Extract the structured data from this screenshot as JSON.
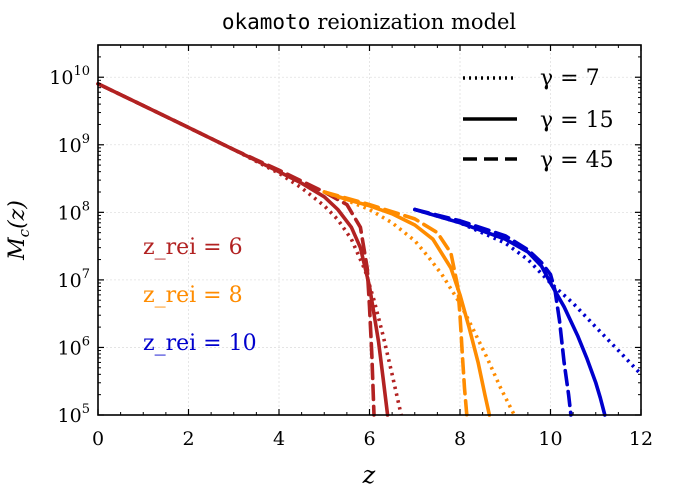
{
  "chart_data": {
    "type": "line",
    "title_prefix": "okamoto",
    "title_suffix": "reionization model",
    "xlabel": "z",
    "ylabel": "M_c(z)",
    "xlim": [
      0,
      12
    ],
    "ylim": [
      100000,
      30000000000
    ],
    "yscale": "log",
    "grid": true,
    "x_ticks": [
      "0",
      "2",
      "4",
      "6",
      "8",
      "10",
      "12"
    ],
    "y_ticks": [
      "10^5",
      "10^6",
      "10^7",
      "10^8",
      "10^9",
      "10^10"
    ],
    "legend": {
      "placement": "top-right",
      "entries": [
        {
          "label": "γ = 7",
          "linestyle": "dotted"
        },
        {
          "label": "γ = 15",
          "linestyle": "solid"
        },
        {
          "label": "γ = 45",
          "linestyle": "dashed"
        }
      ]
    },
    "annotations": [
      {
        "label": "z_rei = 6",
        "color": "#b22222"
      },
      {
        "label": "z_rei = 8",
        "color": "#ff8c00"
      },
      {
        "label": "z_rei = 10",
        "color": "#0000cd"
      }
    ],
    "series": [
      {
        "z_rei": 6,
        "gamma": 7,
        "color": "#b22222",
        "linestyle": "dotted",
        "x": [
          0,
          1,
          2,
          3,
          4,
          4.5,
          5,
          5.3,
          5.6,
          5.9,
          6.1,
          6.3,
          6.5,
          6.7
        ],
        "y": [
          8000000000,
          3800000000,
          1800000000,
          850000000,
          380000000,
          230000000,
          125000000,
          78000000,
          40000000,
          14000000,
          5000000,
          1500000,
          400000,
          100000
        ]
      },
      {
        "z_rei": 6,
        "gamma": 15,
        "color": "#b22222",
        "linestyle": "solid",
        "x": [
          0,
          1,
          2,
          3,
          4,
          4.5,
          5,
          5.3,
          5.6,
          5.8,
          6.0,
          6.2,
          6.3,
          6.4
        ],
        "y": [
          8000000000,
          3800000000,
          1800000000,
          850000000,
          400000000,
          270000000,
          170000000,
          110000000,
          60000000,
          30000000,
          8000000,
          1200000,
          350000,
          100000
        ]
      },
      {
        "z_rei": 6,
        "gamma": 45,
        "color": "#b22222",
        "linestyle": "dashed",
        "x": [
          0,
          1,
          2,
          3,
          4,
          5,
          5.5,
          5.8,
          5.95,
          6.0,
          6.05,
          6.1
        ],
        "y": [
          8000000000,
          3800000000,
          1800000000,
          850000000,
          420000000,
          200000000,
          130000000,
          60000000,
          15000000,
          4000000,
          800000,
          100000
        ]
      },
      {
        "z_rei": 8,
        "gamma": 7,
        "color": "#ff8c00",
        "linestyle": "dotted",
        "x": [
          5,
          5.5,
          6,
          6.5,
          7,
          7.3,
          7.6,
          8.0,
          8.3,
          8.6,
          8.9,
          9.2
        ],
        "y": [
          200000000,
          150000000,
          110000000,
          70000000,
          38000000,
          22000000,
          12000000,
          4500000,
          1800000,
          700000,
          250000,
          100000
        ]
      },
      {
        "z_rei": 8,
        "gamma": 15,
        "color": "#ff8c00",
        "linestyle": "solid",
        "x": [
          5,
          5.5,
          6,
          6.5,
          7,
          7.4,
          7.8,
          8.0,
          8.2,
          8.4,
          8.55,
          8.65
        ],
        "y": [
          200000000,
          155000000,
          125000000,
          95000000,
          65000000,
          40000000,
          15000000,
          6000000,
          2000000,
          600000,
          200000,
          100000
        ]
      },
      {
        "z_rei": 8,
        "gamma": 45,
        "color": "#ff8c00",
        "linestyle": "dashed",
        "x": [
          5,
          6,
          7,
          7.5,
          7.8,
          7.95,
          8.0,
          8.05,
          8.1,
          8.15
        ],
        "y": [
          200000000,
          130000000,
          80000000,
          50000000,
          25000000,
          8000000,
          3000000,
          800000,
          250000,
          100000
        ]
      },
      {
        "z_rei": 10,
        "gamma": 7,
        "color": "#0000cd",
        "linestyle": "dotted",
        "x": [
          7,
          8,
          9,
          9.5,
          10,
          10.5,
          11,
          11.5,
          12
        ],
        "y": [
          110000000,
          70000000,
          35000000,
          20000000,
          9000000,
          4500000,
          2000000,
          900000,
          400000
        ]
      },
      {
        "z_rei": 10,
        "gamma": 15,
        "color": "#0000cd",
        "linestyle": "solid",
        "x": [
          7,
          8,
          9,
          9.5,
          9.8,
          10.0,
          10.3,
          10.6,
          10.8,
          11.0,
          11.1,
          11.2
        ],
        "y": [
          110000000,
          70000000,
          40000000,
          26000000,
          16000000,
          9000000,
          4000000,
          1500000,
          700000,
          300000,
          180000,
          100000
        ]
      },
      {
        "z_rei": 10,
        "gamma": 45,
        "color": "#0000cd",
        "linestyle": "dashed",
        "x": [
          7,
          8,
          9,
          9.5,
          9.8,
          10.0,
          10.1,
          10.2,
          10.3,
          10.4,
          10.45
        ],
        "y": [
          110000000,
          75000000,
          45000000,
          28000000,
          18000000,
          12000000,
          7000000,
          2500000,
          600000,
          200000,
          100000
        ]
      }
    ]
  }
}
